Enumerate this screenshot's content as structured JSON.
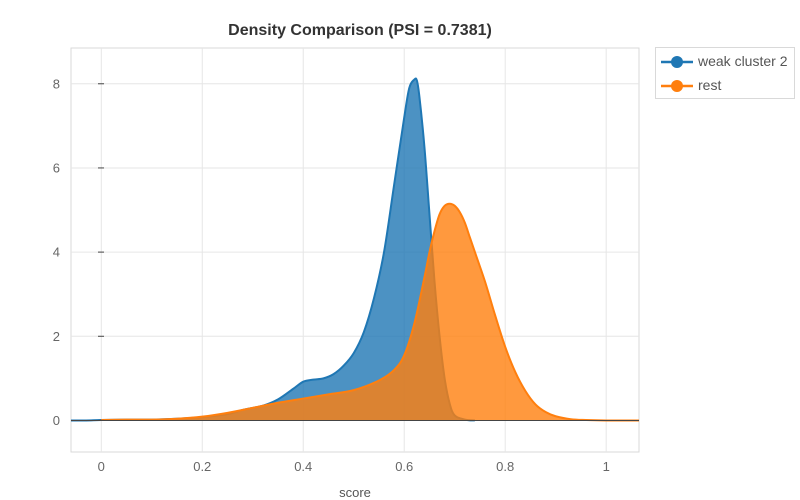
{
  "chart_data": {
    "type": "area",
    "title": "Density Comparison (PSI = 0.7381)",
    "xlabel": "score",
    "ylabel": "",
    "xlim": [
      -0.06,
      1.065
    ],
    "ylim": [
      -0.75,
      8.85
    ],
    "x_ticks": [
      0,
      0.2,
      0.4,
      0.6,
      0.8,
      1
    ],
    "x_tick_labels": [
      "0",
      "0.2",
      "0.4",
      "0.6",
      "0.8",
      "1"
    ],
    "y_ticks": [
      0,
      2,
      4,
      6,
      8
    ],
    "y_tick_labels": [
      "0",
      "2",
      "4",
      "6",
      "8"
    ],
    "grid": true,
    "legend_position": "top-right-outside",
    "series": [
      {
        "name": "weak cluster 2",
        "color": "#1f77b4",
        "x": [
          -0.06,
          -0.03,
          0.0,
          0.05,
          0.1,
          0.15,
          0.2,
          0.25,
          0.28,
          0.32,
          0.35,
          0.38,
          0.4,
          0.42,
          0.44,
          0.46,
          0.48,
          0.5,
          0.52,
          0.54,
          0.56,
          0.58,
          0.6,
          0.61,
          0.62,
          0.625,
          0.63,
          0.64,
          0.65,
          0.66,
          0.67,
          0.68,
          0.69,
          0.7,
          0.72,
          0.74
        ],
        "y": [
          0.0,
          0.0,
          0.01,
          0.02,
          0.02,
          0.04,
          0.08,
          0.15,
          0.25,
          0.35,
          0.5,
          0.75,
          0.92,
          0.97,
          1.0,
          1.1,
          1.3,
          1.6,
          2.1,
          2.9,
          4.0,
          5.6,
          7.2,
          7.9,
          8.1,
          8.08,
          7.7,
          6.5,
          4.9,
          3.3,
          2.0,
          1.0,
          0.4,
          0.12,
          0.02,
          0.0
        ]
      },
      {
        "name": "rest",
        "color": "#ff7f0e",
        "x": [
          0.0,
          0.05,
          0.1,
          0.15,
          0.2,
          0.25,
          0.3,
          0.35,
          0.4,
          0.45,
          0.5,
          0.55,
          0.58,
          0.6,
          0.62,
          0.64,
          0.65,
          0.66,
          0.67,
          0.68,
          0.69,
          0.7,
          0.71,
          0.72,
          0.73,
          0.74,
          0.76,
          0.78,
          0.8,
          0.82,
          0.84,
          0.86,
          0.88,
          0.9,
          0.93,
          0.96,
          1.0,
          1.065
        ],
        "y": [
          0.01,
          0.02,
          0.02,
          0.04,
          0.09,
          0.18,
          0.3,
          0.42,
          0.52,
          0.62,
          0.72,
          0.95,
          1.2,
          1.55,
          2.3,
          3.4,
          4.0,
          4.5,
          4.9,
          5.1,
          5.15,
          5.1,
          4.95,
          4.7,
          4.35,
          4.0,
          3.3,
          2.5,
          1.75,
          1.15,
          0.7,
          0.38,
          0.2,
          0.1,
          0.03,
          0.01,
          0.0,
          0.0
        ]
      }
    ]
  }
}
